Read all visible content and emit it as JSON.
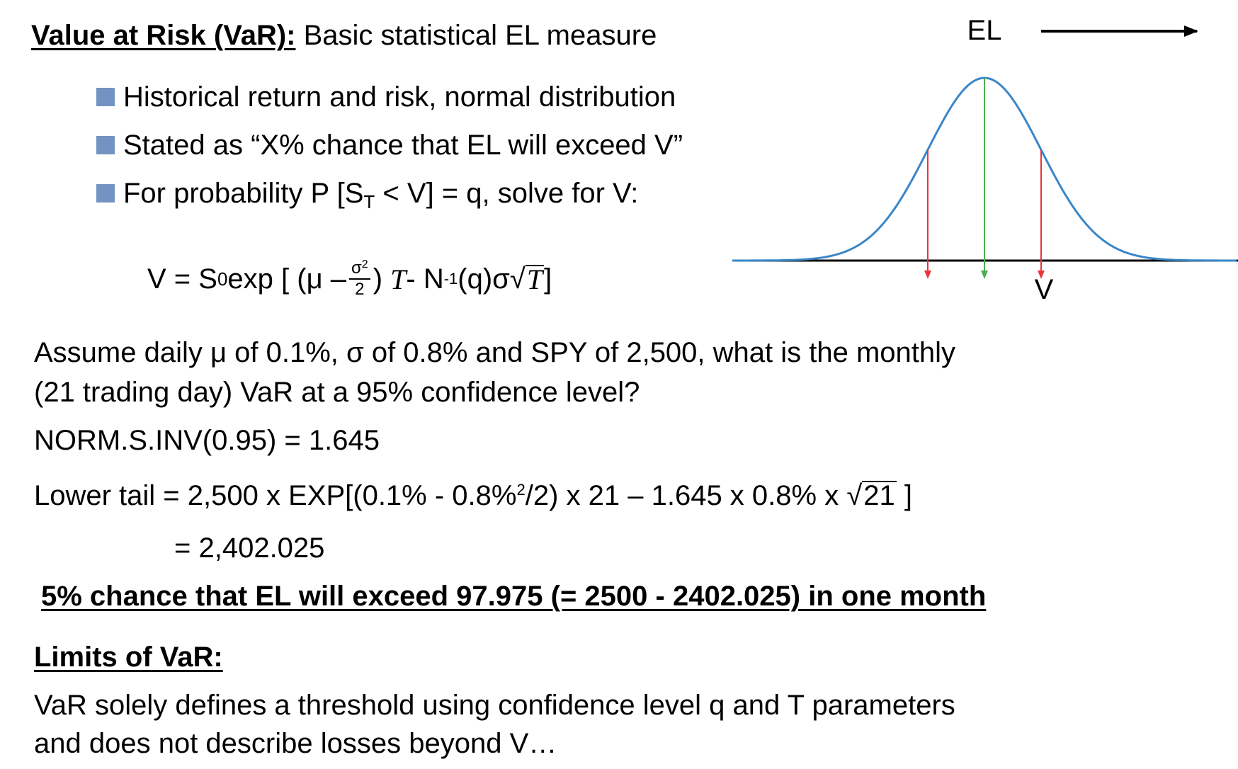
{
  "heading": {
    "bold": "Value at Risk (VaR):",
    "rest": " Basic statistical EL measure"
  },
  "bullets": [
    {
      "text": "Historical return and risk, normal distribution"
    },
    {
      "text": "Stated as “X% chance that EL will exceed V”"
    },
    {
      "pre": "For probability P [S",
      "sub": "T",
      "post": " < V] = q, solve for V:"
    }
  ],
  "formula": {
    "v_eq": "V = S",
    "s_sub": "0",
    "exp_open": " exp [ (μ –",
    "frac_num": "σ",
    "frac_num_sup": "2",
    "frac_den": "2",
    "close_paren": ")",
    "t1": "T",
    "minus_n": " - N",
    "n_sup": "-1",
    "q_sigma": "(q)σ√",
    "t2": "T",
    "bracket": " ]"
  },
  "chart_data": {
    "type": "diagram",
    "label_top": "EL",
    "label_bottom": "V",
    "curve": "normal distribution",
    "colors": {
      "curve": "#3a86c8",
      "center_line": "#4caf50",
      "tail_lines": "#e8343c",
      "axis": "#000000"
    }
  },
  "question": {
    "line1": "Assume daily μ of 0.1%, σ of 0.8% and SPY of 2,500, what is the monthly",
    "line2": "(21 trading day) VaR at a 95% confidence level?"
  },
  "norm_inv": "NORM.S.INV(0.95) = 1.645",
  "lower_tail": {
    "pre": "Lower tail = 2,500 x EXP[(0.1% - 0.8%",
    "sup": "2",
    "mid": "/2) x 21 – 1.645 x 0.8% x √",
    "rad": "21",
    "post": " ]"
  },
  "result": "= 2,402.025",
  "conclusion": "5% chance that EL will exceed 97.975 (= 2500 - 2402.025) in one month",
  "limits": {
    "title": "Limits of VaR:",
    "line1": "VaR solely defines a threshold using confidence level q and T parameters",
    "line2": "and does not describe losses beyond V…"
  }
}
